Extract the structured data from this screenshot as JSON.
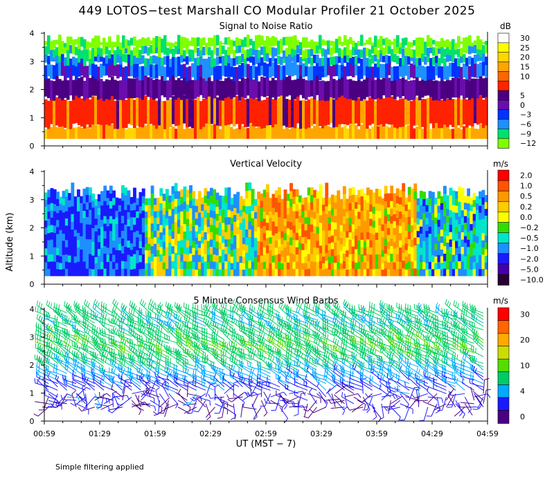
{
  "title": "449 LOTOS−test Marshall CO Modular Profiler 21 October 2025",
  "footnote": "Simple filtering applied",
  "xlabel": "UT  (MST − 7)",
  "ylabel": "Altitude (km)",
  "x_ticks": [
    "00:59",
    "01:29",
    "01:59",
    "02:29",
    "02:59",
    "03:29",
    "03:59",
    "04:29",
    "04:59"
  ],
  "chart_data": [
    {
      "type": "heatmap",
      "title": "Signal to Noise Ratio",
      "units": "dB",
      "ylabel": "Altitude (km)",
      "xlabel": "UT  (MST − 7)",
      "x_range": [
        "00:59",
        "04:59"
      ],
      "ylim": [
        0,
        4
      ],
      "y_ticks": [
        0,
        1,
        2,
        3,
        4
      ],
      "colorbar": [
        {
          "label": "30",
          "color": "#ffffff"
        },
        {
          "label": "25",
          "color": "#ffff00"
        },
        {
          "label": "20",
          "color": "#ffd700"
        },
        {
          "label": "15",
          "color": "#ffa500"
        },
        {
          "label": "10",
          "color": "#ff6600"
        },
        {
          "label": "",
          "color": "#ff2200"
        },
        {
          "label": "5",
          "color": "#4b0082"
        },
        {
          "label": "0",
          "color": "#6a0dad"
        },
        {
          "label": "−3",
          "color": "#0033ff"
        },
        {
          "label": "−6",
          "color": "#1e90ff"
        },
        {
          "label": "−9",
          "color": "#00e070"
        },
        {
          "label": "−12",
          "color": "#7fff00"
        }
      ],
      "bands_km": [
        {
          "from": 0.25,
          "to": 0.7,
          "value_db": 15
        },
        {
          "from": 0.7,
          "to": 1.7,
          "value_db": 10
        },
        {
          "from": 1.7,
          "to": 2.4,
          "value_db": 3
        },
        {
          "from": 2.4,
          "to": 2.9,
          "value_db": -3
        },
        {
          "from": 2.9,
          "to": 3.2,
          "value_db": -6
        },
        {
          "from": 3.2,
          "to": 3.5,
          "value_db": -9
        },
        {
          "from": 3.5,
          "to": 3.8,
          "value_db": -12
        }
      ]
    },
    {
      "type": "heatmap",
      "title": "Vertical Velocity",
      "units": "m/s",
      "ylabel": "Altitude (km)",
      "ylim": [
        0,
        4
      ],
      "y_ticks": [
        0,
        1,
        2,
        3,
        4
      ],
      "colorbar": [
        {
          "label": "2.0",
          "color": "#ff0000"
        },
        {
          "label": "1.0",
          "color": "#ff5500"
        },
        {
          "label": "0.5",
          "color": "#ff9900"
        },
        {
          "label": "0.2",
          "color": "#ffcc00"
        },
        {
          "label": "0.0",
          "color": "#ffff00"
        },
        {
          "label": "−0.2",
          "color": "#33dd00"
        },
        {
          "label": "−0.5",
          "color": "#00e5cc"
        },
        {
          "label": "−1.0",
          "color": "#1e8fff"
        },
        {
          "label": "−2.0",
          "color": "#1a1aff"
        },
        {
          "label": "−5.0",
          "color": "#4400aa"
        },
        {
          "label": "−10.0",
          "color": "#2a0030"
        }
      ],
      "segments": [
        {
          "from": "00:59",
          "to": "01:53",
          "velocity_ms": -1.0
        },
        {
          "from": "01:53",
          "to": "02:55",
          "velocity_ms": -0.2
        },
        {
          "from": "02:55",
          "to": "04:20",
          "velocity_ms": 0.5
        },
        {
          "from": "04:20",
          "to": "04:59",
          "velocity_ms": -0.5
        }
      ]
    },
    {
      "type": "scatter",
      "title": "5 Minute Consensus Wind Barbs",
      "units": "m/s",
      "ylabel": "Altitude (km)",
      "ylim": [
        0,
        4
      ],
      "y_ticks": [
        0,
        1,
        2,
        3,
        4
      ],
      "colorbar": [
        {
          "label": "30",
          "color": "#ff0000"
        },
        {
          "label": "",
          "color": "#ff6600"
        },
        {
          "label": "20",
          "color": "#ffaa00"
        },
        {
          "label": "",
          "color": "#ccdd00"
        },
        {
          "label": "10",
          "color": "#55dd00"
        },
        {
          "label": "",
          "color": "#00cc66"
        },
        {
          "label": "4",
          "color": "#00aaff"
        },
        {
          "label": "",
          "color": "#1a1aff"
        },
        {
          "label": "0",
          "color": "#4b0082"
        }
      ],
      "wind_profile": [
        {
          "alt_km": 0.5,
          "speed_ms": 3,
          "dir_deg": 90
        },
        {
          "alt_km": 1.0,
          "speed_ms": 6,
          "dir_deg": 300
        },
        {
          "alt_km": 1.5,
          "speed_ms": 9,
          "dir_deg": 300
        },
        {
          "alt_km": 2.0,
          "speed_ms": 13,
          "dir_deg": 300
        },
        {
          "alt_km": 2.5,
          "speed_ms": 16,
          "dir_deg": 300
        },
        {
          "alt_km": 3.0,
          "speed_ms": 14,
          "dir_deg": 300
        },
        {
          "alt_km": 3.5,
          "speed_ms": 12,
          "dir_deg": 300
        },
        {
          "alt_km": 4.0,
          "speed_ms": 15,
          "dir_deg": 300
        }
      ]
    }
  ]
}
